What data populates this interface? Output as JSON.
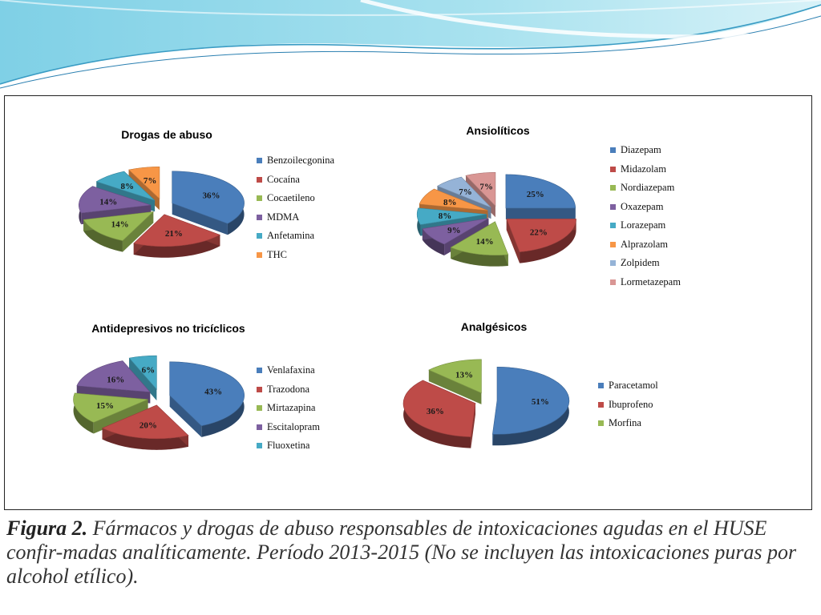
{
  "caption": {
    "label": "Figura 2.",
    "text": "Fármacos y drogas de abuso responsables de intoxicaciones agudas en el HUSE confir-madas analíticamente. Período 2013-2015 (No se incluyen las intoxicaciones puras por alcohol etílico)."
  },
  "chart_data": [
    {
      "type": "pie",
      "title": "Drogas de abuso",
      "legend_position": "right",
      "categories": [
        "Benzoilecgonina",
        "Cocaína",
        "Cocaetileno",
        "MDMA",
        "Anfetamina",
        "THC"
      ],
      "values": [
        36,
        21,
        14,
        14,
        8,
        7
      ],
      "labels": [
        "36%",
        "21%",
        "14%",
        "14%",
        "8%",
        "7%"
      ],
      "colors": [
        "#4a7ebb",
        "#be4b48",
        "#98b954",
        "#7d60a0",
        "#46aac5",
        "#f79646"
      ],
      "exploded": true
    },
    {
      "type": "pie",
      "title": "Ansiolíticos",
      "legend_position": "right",
      "categories": [
        "Diazepam",
        "Midazolam",
        "Nordiazepam",
        "Oxazepam",
        "Lorazepam",
        "Alprazolam",
        "Zolpidem",
        "Lormetazepam"
      ],
      "values": [
        25,
        22,
        14,
        9,
        8,
        8,
        7,
        7
      ],
      "labels": [
        "25%",
        "22%",
        "14%",
        "9%",
        "8%",
        "8%",
        "7%",
        "7%"
      ],
      "colors": [
        "#4a7ebb",
        "#be4b48",
        "#98b954",
        "#7d60a0",
        "#46aac5",
        "#f79646",
        "#95b3d7",
        "#d99694"
      ],
      "exploded": true
    },
    {
      "type": "pie",
      "title": "Antidepresivos no tricíclicos",
      "legend_position": "right",
      "categories": [
        "Venlafaxina",
        "Trazodona",
        "Mirtazapina",
        "Escitalopram",
        "Fluoxetina"
      ],
      "values": [
        43,
        20,
        15,
        16,
        6
      ],
      "labels": [
        "43%",
        "20%",
        "15%",
        "16%",
        "6%"
      ],
      "colors": [
        "#4a7ebb",
        "#be4b48",
        "#98b954",
        "#7d60a0",
        "#46aac5"
      ],
      "exploded": true
    },
    {
      "type": "pie",
      "title": "Analgésicos",
      "legend_position": "right",
      "categories": [
        "Paracetamol",
        "Ibuprofeno",
        "Morfina"
      ],
      "values": [
        51,
        36,
        13
      ],
      "labels": [
        "51%",
        "36%",
        "13%"
      ],
      "colors": [
        "#4a7ebb",
        "#be4b48",
        "#98b954"
      ],
      "exploded": true
    }
  ]
}
